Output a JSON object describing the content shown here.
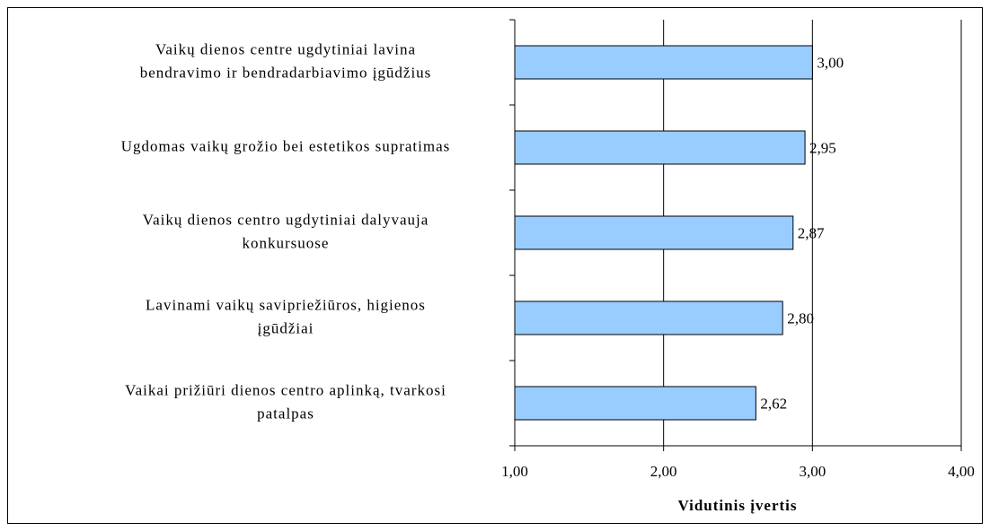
{
  "chart_data": {
    "type": "hbar",
    "categories": [
      [
        "Vaikų dienos centre ugdytiniai lavina",
        "bendravimo ir bendradarbiavimo įgūdžius"
      ],
      [
        "Ugdomas vaikų grožio bei estetikos supratimas"
      ],
      [
        "Vaikų dienos centro ugdytiniai dalyvauja",
        "konkursuose"
      ],
      [
        "Lavinami vaikų savipriežiūros, higienos",
        "įgūdžiai"
      ],
      [
        "Vaikai prižiūri dienos centro aplinką, tvarkosi",
        "patalpas"
      ]
    ],
    "values": [
      3.0,
      2.95,
      2.87,
      2.8,
      2.62
    ],
    "value_labels": [
      "3,00",
      "2,95",
      "2,87",
      "2,80",
      "2,62"
    ],
    "color": "#99ccff",
    "xlabel": "Vidutinis įvertis",
    "xlim": [
      1,
      4
    ],
    "xticks": [
      {
        "value": 1,
        "label": "1,00"
      },
      {
        "value": 2,
        "label": "2,00"
      },
      {
        "value": 3,
        "label": "3,00"
      },
      {
        "value": 4,
        "label": "4,00"
      }
    ],
    "grid": true
  }
}
